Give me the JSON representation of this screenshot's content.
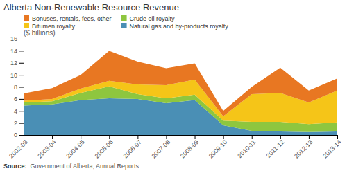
{
  "chart_data": {
    "type": "area",
    "stacked": true,
    "title": "Alberta Non-Renewable Resource Revenue",
    "y_label": "($ billions)",
    "annotations": [
      "Source:",
      "Government of Alberta, Annual Reports"
    ],
    "categories": [
      "2002-03",
      "2003-04",
      "2004-05",
      "2005-06",
      "2006-07",
      "2007-08",
      "2008-09",
      "2009-10",
      "2010-11",
      "2011-12",
      "2012-13",
      "2013-14"
    ],
    "series": [
      {
        "name": "Natural gas and by-products royalty",
        "color": "#4a8fb5",
        "values": [
          4.9,
          5.1,
          5.8,
          6.1,
          6.0,
          5.3,
          5.8,
          1.6,
          0.7,
          0.7,
          0.6,
          0.7
        ]
      },
      {
        "name": "Crude oil royalty",
        "color": "#8ec63f",
        "values": [
          0.5,
          0.5,
          1.2,
          2.0,
          0.8,
          0.8,
          0.9,
          0.8,
          1.5,
          1.5,
          1.2,
          1.4
        ]
      },
      {
        "name": "Bitumen royalty",
        "color": "#f5c518",
        "values": [
          0.3,
          0.4,
          0.7,
          0.9,
          1.6,
          2.2,
          2.5,
          0.7,
          4.6,
          4.8,
          3.6,
          5.3
        ]
      },
      {
        "name": "Bonuses, rentals, fees, other",
        "color": "#e87722",
        "values": [
          1.2,
          1.8,
          2.3,
          5.0,
          3.8,
          2.8,
          2.7,
          0.9,
          1.2,
          4.2,
          2.0,
          2.0
        ]
      }
    ],
    "ylim": [
      0,
      16
    ],
    "yticks": [
      0,
      2,
      4,
      6,
      8,
      10,
      12,
      14,
      16
    ],
    "grid": false,
    "legend": "upper left"
  }
}
